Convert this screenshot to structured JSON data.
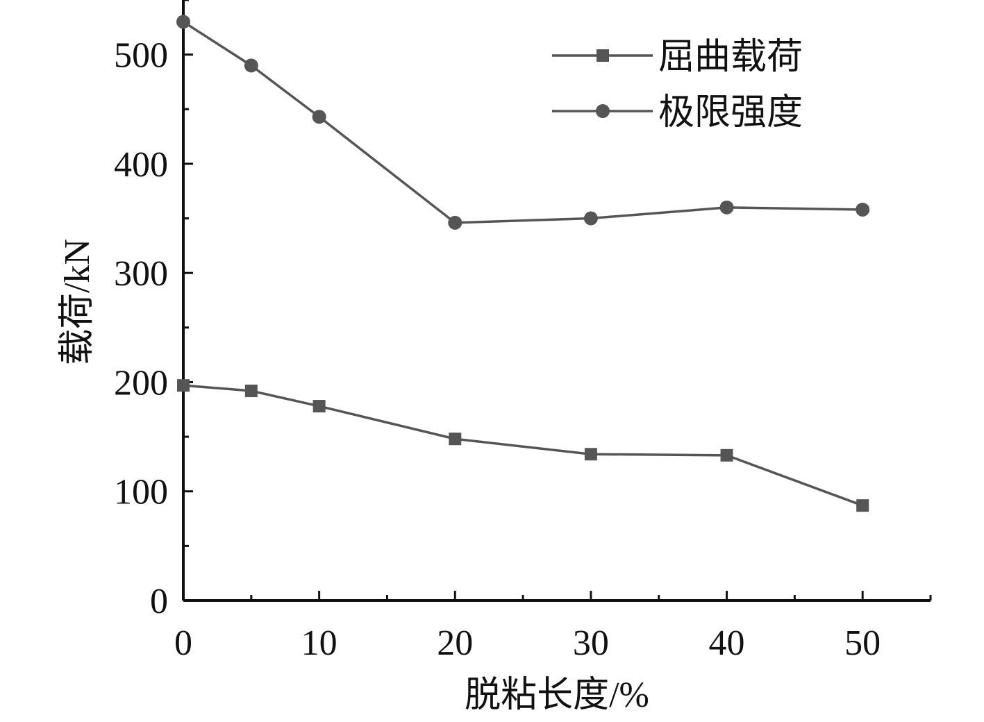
{
  "chart_data": {
    "type": "line",
    "title": "",
    "xlabel": "脱粘长度/%",
    "ylabel": "载荷/kN",
    "xlim": [
      0,
      55
    ],
    "ylim": [
      0,
      550
    ],
    "xticks": [
      0,
      10,
      20,
      30,
      40,
      50
    ],
    "yticks": [
      0,
      100,
      200,
      300,
      400,
      500
    ],
    "xtick_labels": [
      "0",
      "10",
      "20",
      "30",
      "40",
      "50"
    ],
    "ytick_labels": [
      "0",
      "100",
      "200",
      "300",
      "400",
      "500"
    ],
    "grid": false,
    "legend_position": "top-right",
    "line_color": "#555555",
    "series": [
      {
        "name": "屈曲载荷",
        "marker": "square",
        "x": [
          0,
          5,
          10,
          20,
          30,
          40,
          50
        ],
        "y": [
          197,
          192,
          178,
          148,
          134,
          133,
          87
        ]
      },
      {
        "name": "极限强度",
        "marker": "circle",
        "x": [
          0,
          5,
          10,
          20,
          30,
          40,
          50
        ],
        "y": [
          530,
          490,
          443,
          346,
          350,
          360,
          358
        ]
      }
    ]
  }
}
